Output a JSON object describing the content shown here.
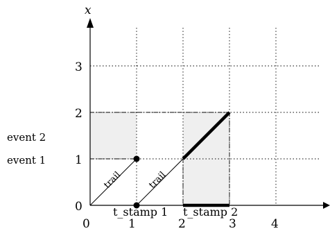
{
  "axes": {
    "x_label": "",
    "y_label": "x",
    "x_ticks": [
      "0",
      "1",
      "2",
      "3",
      "4"
    ],
    "y_ticks": [
      "0",
      "1",
      "2",
      "3"
    ]
  },
  "events": [
    {
      "label": "event 2",
      "y": 2
    },
    {
      "label": "event 1",
      "y": 1
    }
  ],
  "timestamps": [
    {
      "label": "t_stamp 1",
      "t": 1
    },
    {
      "label": "t_stamp 2",
      "t": [
        2,
        3
      ]
    }
  ],
  "trails": [
    {
      "label": "trail",
      "from": [
        0,
        0
      ],
      "to": [
        1,
        1
      ]
    },
    {
      "label": "trail",
      "from": [
        1,
        0
      ],
      "to": [
        2,
        1
      ]
    }
  ],
  "shaded_regions": [
    {
      "x": [
        0,
        1
      ],
      "y": [
        1,
        2
      ]
    },
    {
      "x": [
        2,
        3
      ],
      "y": [
        0,
        2
      ]
    }
  ],
  "bold_segments": [
    {
      "from": [
        2,
        1
      ],
      "to": [
        3,
        2
      ]
    },
    {
      "from": [
        2,
        0
      ],
      "to": [
        3,
        0
      ]
    }
  ],
  "points": [
    [
      1,
      1
    ],
    [
      1,
      0
    ]
  ],
  "grid": "dotted",
  "colors": {
    "shade": "#efefef",
    "line": "#000000"
  }
}
